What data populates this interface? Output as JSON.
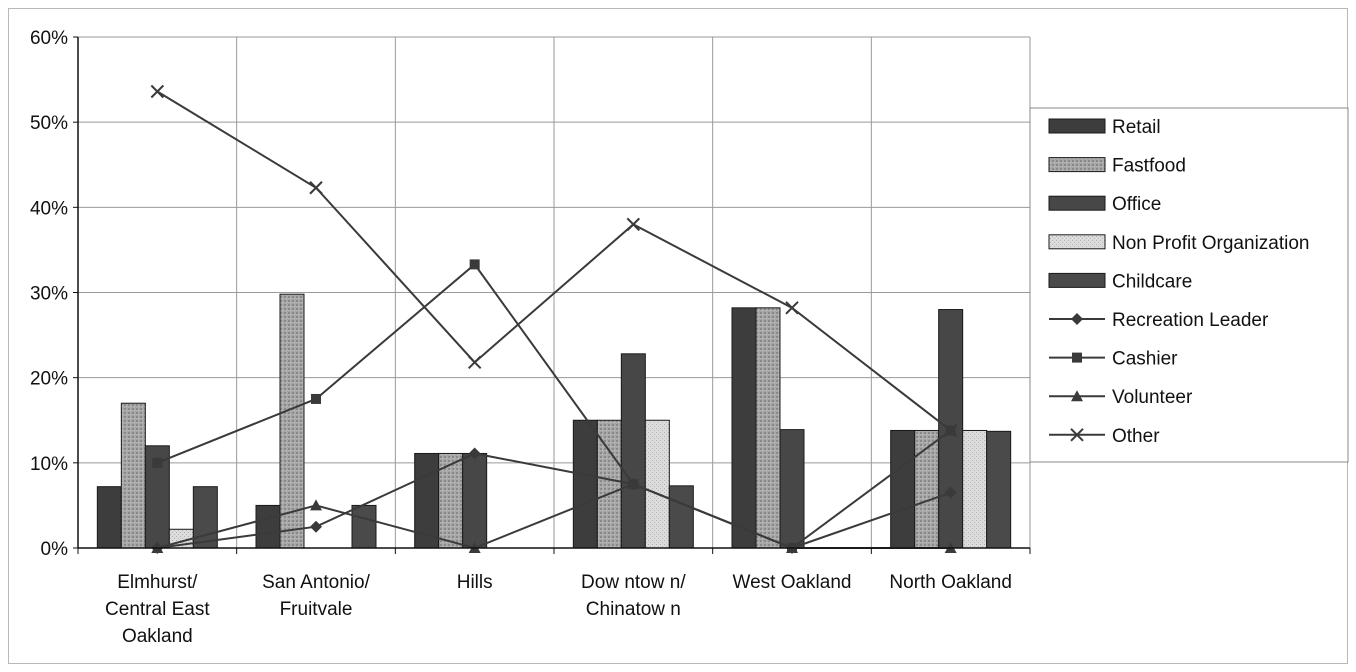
{
  "chart_data": {
    "type": "bar",
    "categories": [
      [
        "Elmhurst/",
        "Central East",
        "Oakland"
      ],
      [
        "San Antonio/",
        "Fruitvale"
      ],
      [
        "Hills"
      ],
      [
        "Dow ntow n/",
        "Chinatow n"
      ],
      [
        "West Oakland"
      ],
      [
        "North Oakland"
      ]
    ],
    "ylim": [
      0,
      60
    ],
    "yticks": [
      "0%",
      "10%",
      "20%",
      "30%",
      "40%",
      "50%",
      "60%"
    ],
    "grid": true,
    "legend_position": "right",
    "bar_series": [
      {
        "name": "Retail",
        "values": [
          7.2,
          5.0,
          11.1,
          15.0,
          28.2,
          13.8
        ],
        "color": "#3d3d3d",
        "pattern": "solid"
      },
      {
        "name": "Fastfood",
        "values": [
          17.0,
          29.8,
          11.1,
          15.0,
          28.2,
          13.8
        ],
        "color": "#9c9c9c",
        "pattern": "dots"
      },
      {
        "name": "Office",
        "values": [
          12.0,
          0,
          11.1,
          22.8,
          13.9,
          28.0
        ],
        "color": "#474747",
        "pattern": "solid"
      },
      {
        "name": "Non Profit Organization",
        "values": [
          2.2,
          0,
          0,
          15.0,
          0,
          13.8
        ],
        "color": "#d4d4d4",
        "pattern": "light"
      },
      {
        "name": "Childcare",
        "values": [
          7.2,
          5.0,
          0,
          7.3,
          0,
          13.7
        ],
        "color": "#4a4a4a",
        "pattern": "solid"
      }
    ],
    "line_series": [
      {
        "name": "Recreation Leader",
        "marker": "diamond",
        "values": [
          0,
          2.5,
          11.1,
          7.5,
          0,
          6.5
        ]
      },
      {
        "name": "Cashier",
        "marker": "square",
        "values": [
          10.0,
          17.5,
          33.3,
          7.5,
          0,
          13.8
        ]
      },
      {
        "name": "Volunteer",
        "marker": "triangle",
        "values": [
          0,
          5.0,
          0,
          7.5,
          0,
          0
        ]
      },
      {
        "name": "Other",
        "marker": "x",
        "values": [
          53.6,
          42.3,
          21.8,
          38.0,
          28.2,
          13.8
        ]
      }
    ],
    "line_color": "#3a3a3a"
  }
}
